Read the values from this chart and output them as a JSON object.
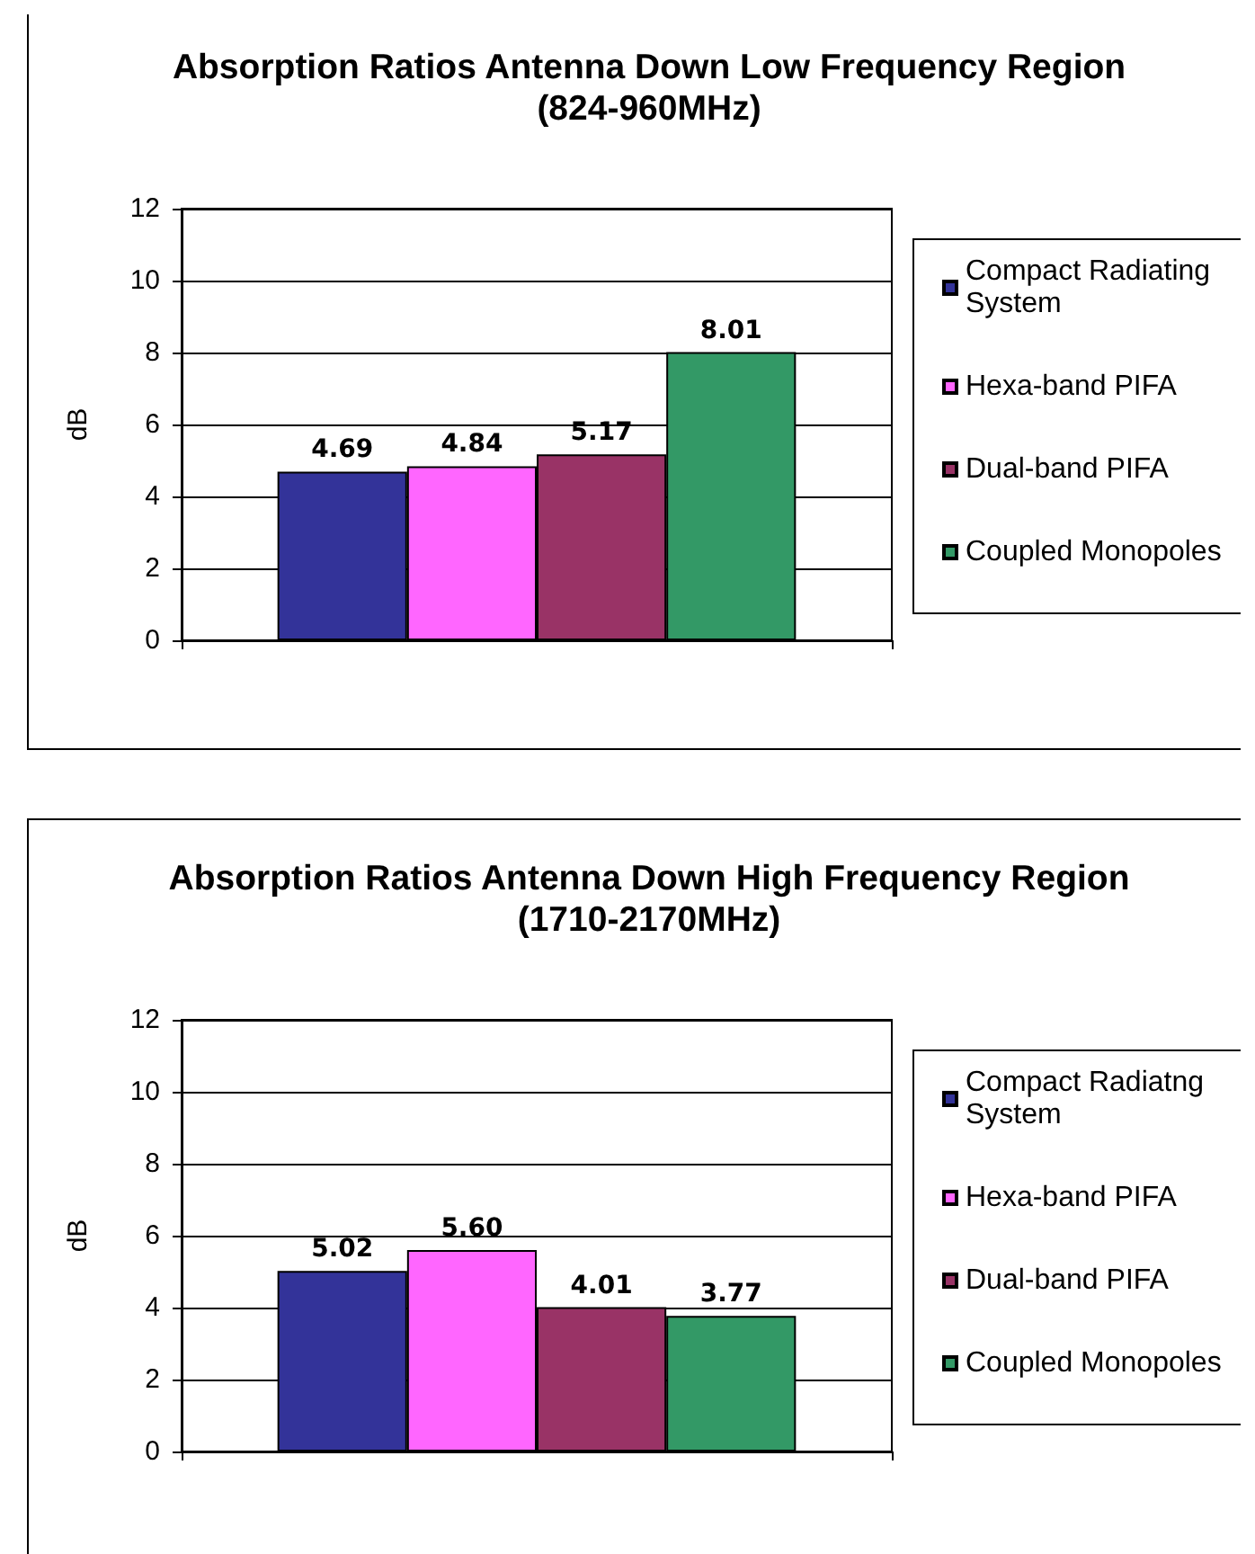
{
  "chart_data": [
    {
      "type": "bar",
      "title": "Absorption Ratios Antenna Down Low Frequency Region\n(824-960MHz)",
      "ylabel": "dB",
      "categories": [
        null
      ],
      "series": [
        {
          "name": "Compact Radiating System",
          "color": "#333399",
          "values": [
            4.69
          ],
          "value_labels": [
            "4.69"
          ]
        },
        {
          "name": "Hexa-band PIFA",
          "color": "#ff66ff",
          "values": [
            4.84
          ],
          "value_labels": [
            "4.84"
          ]
        },
        {
          "name": "Dual-band PIFA",
          "color": "#993366",
          "values": [
            5.17
          ],
          "value_labels": [
            "5.17"
          ]
        },
        {
          "name": "Coupled Monopoles",
          "color": "#339966",
          "values": [
            8.01
          ],
          "value_labels": [
            "8.01"
          ]
        }
      ],
      "ylim": [
        0,
        12
      ],
      "yticks": [
        0,
        2,
        4,
        6,
        8,
        10,
        12
      ],
      "grid": "y",
      "legend": "right",
      "tick_labels": "y"
    },
    {
      "type": "bar",
      "title": "Absorption Ratios Antenna Down High Frequency Region\n(1710-2170MHz)",
      "ylabel": "dB",
      "categories": [
        null
      ],
      "series": [
        {
          "name": "Compact Radiatng System",
          "color": "#333399",
          "values": [
            5.02
          ],
          "value_labels": [
            "5.02"
          ]
        },
        {
          "name": "Hexa-band PIFA",
          "color": "#ff66ff",
          "values": [
            5.6
          ],
          "value_labels": [
            "5.60"
          ]
        },
        {
          "name": "Dual-band PIFA",
          "color": "#993366",
          "values": [
            4.01
          ],
          "value_labels": [
            "4.01"
          ]
        },
        {
          "name": "Coupled Monopoles",
          "color": "#339966",
          "values": [
            3.77
          ],
          "value_labels": [
            "3.77"
          ]
        }
      ],
      "ylim": [
        0,
        12
      ],
      "yticks": [
        0,
        2,
        4,
        6,
        8,
        10,
        12
      ],
      "grid": "y",
      "legend": "right",
      "tick_labels": "y"
    }
  ]
}
